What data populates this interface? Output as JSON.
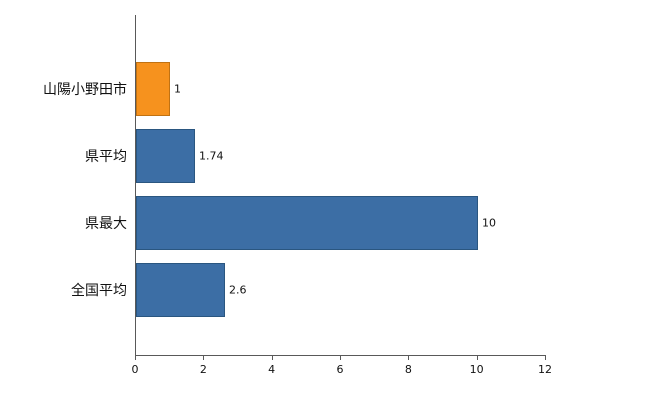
{
  "chart_data": {
    "type": "bar",
    "orientation": "horizontal",
    "title": "",
    "xlabel": "",
    "ylabel": "",
    "categories": [
      "山陽小野田市",
      "県平均",
      "県最大",
      "全国平均"
    ],
    "values": [
      1,
      1.74,
      10,
      2.6
    ],
    "value_labels": [
      "1",
      "1.74",
      "10",
      "2.6"
    ],
    "bar_colors": [
      "#f6921e",
      "#3c6ea5",
      "#3c6ea5",
      "#3c6ea5"
    ],
    "bar_border_colors": [
      "#c07213",
      "#2a5680",
      "#2a5680",
      "#2a5680"
    ],
    "highlight_category": "山陽小野田市",
    "xlim": [
      0,
      12
    ],
    "x_ticks": [
      "0",
      "2",
      "4",
      "6",
      "8",
      "10",
      "12"
    ],
    "grid": false,
    "legend": null,
    "background": "#ffffff",
    "axis_color": "#595959"
  }
}
